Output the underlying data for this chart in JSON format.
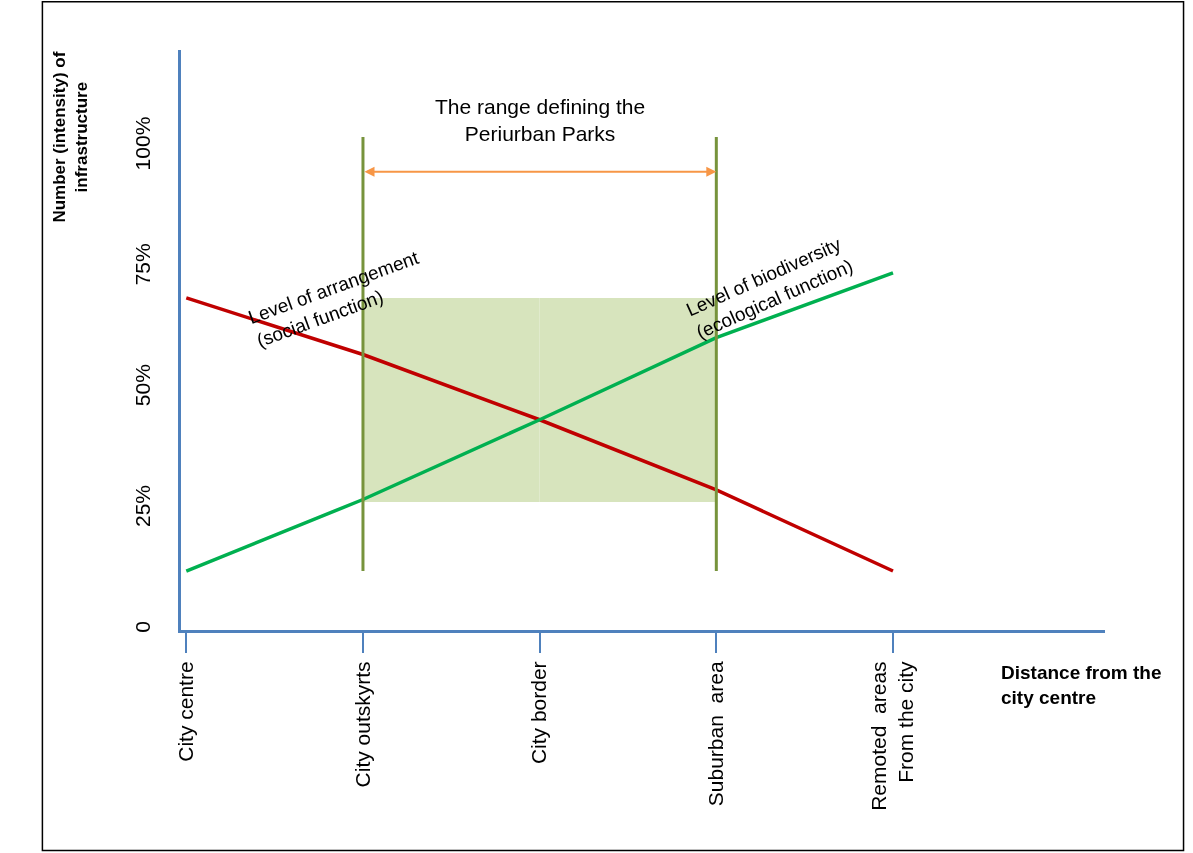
{
  "chart_data": {
    "type": "line",
    "xlabel": "Distance from the\ncity centre",
    "ylabel": "Number (intensity) of\ninfrastructure",
    "categories": [
      "City centre",
      "City outskyrts",
      "City border",
      "Suburban  area",
      "Remoted  areas\nFrom the city"
    ],
    "ylim": [
      0,
      120
    ],
    "yticks": [
      {
        "value": 0,
        "label": "0"
      },
      {
        "value": 25,
        "label": "25%"
      },
      {
        "value": 50,
        "label": "50%"
      },
      {
        "value": 75,
        "label": "75%"
      },
      {
        "value": 100,
        "label": "100%"
      }
    ],
    "series": [
      {
        "type": "bar",
        "values": [
          null,
          42.2,
          42.2,
          null,
          null
        ],
        "base": [
          null,
          26.5,
          26.5,
          null,
          null
        ],
        "color": "#d7e4bd"
      },
      {
        "values": [
          68.7,
          57,
          43.5,
          29,
          12.2
        ],
        "color": "#c00000"
      },
      {
        "values": [
          12.2,
          27,
          43.5,
          60.5,
          73.9
        ],
        "color": "#00b050"
      }
    ],
    "ref_lines": [
      {
        "axis": "x",
        "value": "City outskyrts",
        "color": "#77933c"
      },
      {
        "axis": "x",
        "value": "Suburban  area",
        "color": "#77933c"
      }
    ],
    "annotations": [
      "The range defining the\nPeriurban Parks",
      "Level of arrangement\n(social function)",
      "Level of biodiversity\n(ecological function)"
    ],
    "marker": "none",
    "line_style": "solid"
  }
}
